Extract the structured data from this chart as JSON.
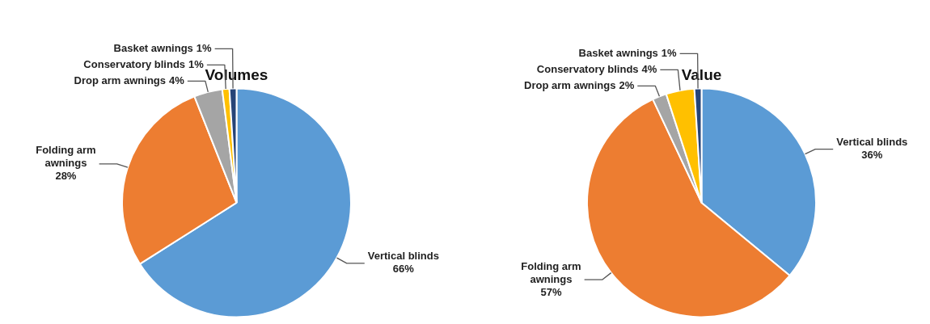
{
  "chart_data": [
    {
      "type": "pie",
      "title": "Volumes",
      "categories": [
        "Vertical blinds",
        "Folding arm awnings",
        "Drop arm awnings",
        "Conservatory blinds",
        "Basket awnings"
      ],
      "values": [
        66,
        28,
        4,
        1,
        1
      ],
      "value_labels": [
        "66%",
        "28%",
        "4%",
        "1%",
        "1%"
      ],
      "colors": [
        "#5b9bd5",
        "#ed7d31",
        "#a5a5a5",
        "#ffc000",
        "#264478"
      ],
      "legend": false
    },
    {
      "type": "pie",
      "title": "Value",
      "categories": [
        "Vertical blinds",
        "Folding arm awnings",
        "Drop arm awnings",
        "Conservatory blinds",
        "Basket awnings"
      ],
      "values": [
        36,
        57,
        2,
        4,
        1
      ],
      "value_labels": [
        "36%",
        "57%",
        "2%",
        "4%",
        "1%"
      ],
      "colors": [
        "#5b9bd5",
        "#ed7d31",
        "#a5a5a5",
        "#ffc000",
        "#264478"
      ],
      "legend": false
    }
  ]
}
